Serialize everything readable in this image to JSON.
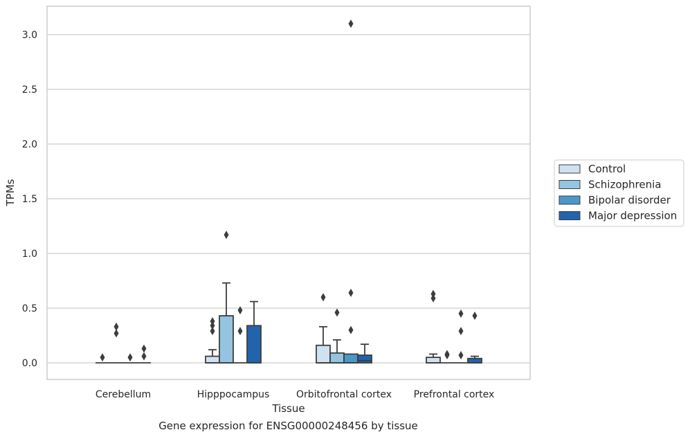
{
  "chart_data": {
    "type": "box",
    "xlabel": "Tissue",
    "ylabel": "TPMs",
    "ylim": [
      -0.15,
      3.25
    ],
    "yticks": [
      0.0,
      0.5,
      1.0,
      1.5,
      2.0,
      2.5,
      3.0
    ],
    "ytick_labels": [
      "0.0",
      "0.5",
      "1.0",
      "1.5",
      "2.0",
      "2.5",
      "3.0"
    ],
    "grid": "horizontal",
    "legend_position": "right",
    "categories": [
      "Cerebellum",
      "Hipppocampus",
      "Orbitofrontal cortex",
      "Prefrontal cortex"
    ],
    "series": [
      {
        "name": "Control",
        "color": "#d0e1f2",
        "boxes": [
          {
            "q1": 0,
            "median": 0,
            "q3": 0,
            "whislo": 0,
            "whishi": 0,
            "fliers": [
              0.05
            ]
          },
          {
            "q1": 0,
            "median": 0,
            "q3": 0.06,
            "whislo": 0,
            "whishi": 0.12,
            "fliers": [
              0.29,
              0.34,
              0.38
            ]
          },
          {
            "q1": 0,
            "median": 0,
            "q3": 0.16,
            "whislo": 0,
            "whishi": 0.33,
            "fliers": [
              0.6
            ]
          },
          {
            "q1": 0,
            "median": 0,
            "q3": 0.05,
            "whislo": 0,
            "whishi": 0.08,
            "fliers": [
              0.59,
              0.63
            ]
          }
        ]
      },
      {
        "name": "Schizophrenia",
        "color": "#94c4df",
        "boxes": [
          {
            "q1": 0,
            "median": 0,
            "q3": 0,
            "whislo": 0,
            "whishi": 0,
            "fliers": [
              0.27,
              0.33
            ]
          },
          {
            "q1": 0,
            "median": 0,
            "q3": 0.43,
            "whislo": 0,
            "whishi": 0.73,
            "fliers": [
              1.17
            ]
          },
          {
            "q1": 0,
            "median": 0,
            "q3": 0.09,
            "whislo": 0,
            "whishi": 0.21,
            "fliers": [
              0.46
            ]
          },
          {
            "q1": 0,
            "median": 0,
            "q3": 0,
            "whislo": 0,
            "whishi": 0,
            "fliers": [
              0.07,
              0.08
            ]
          }
        ]
      },
      {
        "name": "Bipolar disorder",
        "color": "#4a98c9",
        "boxes": [
          {
            "q1": 0,
            "median": 0,
            "q3": 0,
            "whislo": 0,
            "whishi": 0,
            "fliers": [
              0.05
            ]
          },
          {
            "q1": 0,
            "median": 0,
            "q3": 0,
            "whislo": 0,
            "whishi": 0,
            "fliers": [
              0.29,
              0.48
            ]
          },
          {
            "q1": 0,
            "median": 0,
            "q3": 0.08,
            "whislo": 0,
            "whishi": 0.08,
            "fliers": [
              0.3,
              0.64,
              3.1
            ]
          },
          {
            "q1": 0,
            "median": 0,
            "q3": 0,
            "whislo": 0,
            "whishi": 0,
            "fliers": [
              0.07,
              0.29,
              0.45
            ]
          }
        ]
      },
      {
        "name": "Major depression",
        "color": "#2164ab",
        "boxes": [
          {
            "q1": 0,
            "median": 0,
            "q3": 0,
            "whislo": 0,
            "whishi": 0,
            "fliers": [
              0.06,
              0.13
            ]
          },
          {
            "q1": 0,
            "median": 0,
            "q3": 0.34,
            "whislo": 0,
            "whishi": 0.56,
            "fliers": []
          },
          {
            "q1": 0,
            "median": 0.02,
            "q3": 0.07,
            "whislo": 0,
            "whishi": 0.17,
            "fliers": []
          },
          {
            "q1": 0,
            "median": 0,
            "q3": 0.04,
            "whislo": 0,
            "whishi": 0.06,
            "fliers": [
              0.43
            ]
          }
        ]
      }
    ]
  },
  "caption": "Gene expression for ENSG00000248456 by tissue",
  "colors": {
    "grid": "#cccccc",
    "frame": "#cccccc",
    "box_edge": "#3d3d3d",
    "flier": "#3d3d3d"
  }
}
